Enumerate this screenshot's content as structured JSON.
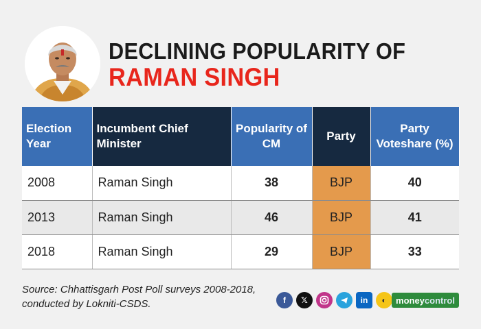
{
  "title": {
    "line1": "DECLINING POPULARITY OF",
    "line2": "RAMAN SINGH"
  },
  "table": {
    "headers": [
      "Election Year",
      "Incumbent Chief Minister",
      "Popularity of CM",
      "Party",
      "Party Voteshare (%)"
    ],
    "rows": [
      [
        "2008",
        "Raman Singh",
        "38",
        "BJP",
        "40"
      ],
      [
        "2013",
        "Raman Singh",
        "46",
        "BJP",
        "41"
      ],
      [
        "2018",
        "Raman Singh",
        "29",
        "BJP",
        "33"
      ]
    ]
  },
  "source": {
    "line1": "Source: Chhattisgarh Post Poll surveys 2008-2018,",
    "line2": "conducted by Lokniti-CSDS."
  },
  "social_icons": [
    "facebook-icon",
    "x-icon",
    "instagram-icon",
    "telegram-icon",
    "linkedin-icon",
    "koo-icon"
  ],
  "brand": {
    "part1": "money",
    "part2": "control"
  },
  "colors": {
    "title_red": "#e8261c",
    "header_blue": "#3a6fb5",
    "header_navy": "#162940",
    "party_orange": "#e49a4c",
    "brand_green": "#2e8b3c"
  }
}
